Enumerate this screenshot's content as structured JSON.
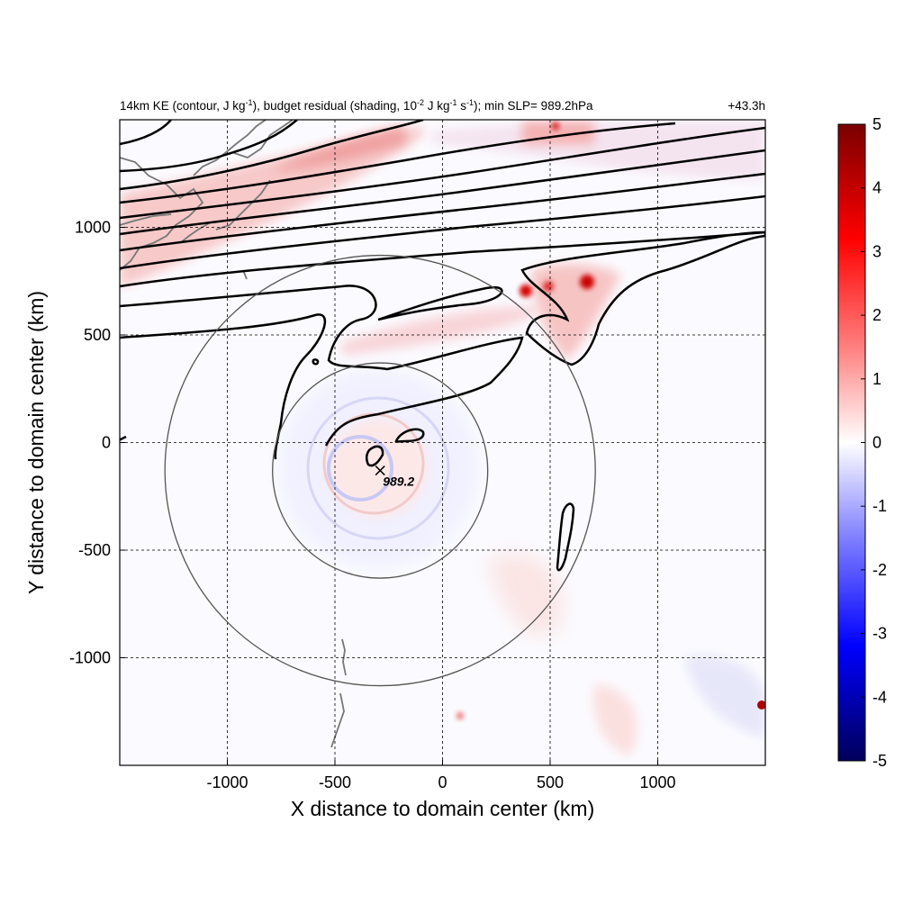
{
  "chart_data": {
    "type": "heatmap",
    "title": {
      "prefix": "14km KE (contour, J kg",
      "sup1": "-1",
      "mid1": "), budget residual (shading, 10",
      "sup2": "-2",
      "mid2": " J kg",
      "sup3": "-1",
      "mid3": " s",
      "sup4": "-1",
      "suffix": "); min SLP= 989.2hPa"
    },
    "time_label": "+43.3h",
    "xlabel": "X distance to domain center (km)",
    "ylabel": "Y distance to domain center (km)",
    "xlim": [
      -1500,
      1500
    ],
    "ylim": [
      -1500,
      1500
    ],
    "x_ticks": [
      -1000,
      -500,
      0,
      500,
      1000
    ],
    "y_ticks": [
      -1000,
      -500,
      0,
      500,
      1000
    ],
    "grid": "dashed",
    "colorbar": {
      "vmin": -5,
      "vmax": 5,
      "ticks": [
        -5,
        -4,
        -3,
        -2,
        -1,
        0,
        1,
        2,
        3,
        4,
        5
      ],
      "colormap": "blue-white-red",
      "colors": [
        "#00005a",
        "#0000ff",
        "#7f7fff",
        "#ffffff",
        "#ff7f7f",
        "#ff0000",
        "#7a0000"
      ]
    },
    "storm_center": {
      "x": -290,
      "y": -130,
      "min_slp": "989.2"
    },
    "radius_circles": [
      {
        "center_x": -290,
        "center_y": -130,
        "radius_km": 500
      },
      {
        "center_x": -290,
        "center_y": -130,
        "radius_km": 1000
      }
    ],
    "colors": {
      "contour": "#000000",
      "coastline": "#777777",
      "circle": "#555555"
    }
  }
}
